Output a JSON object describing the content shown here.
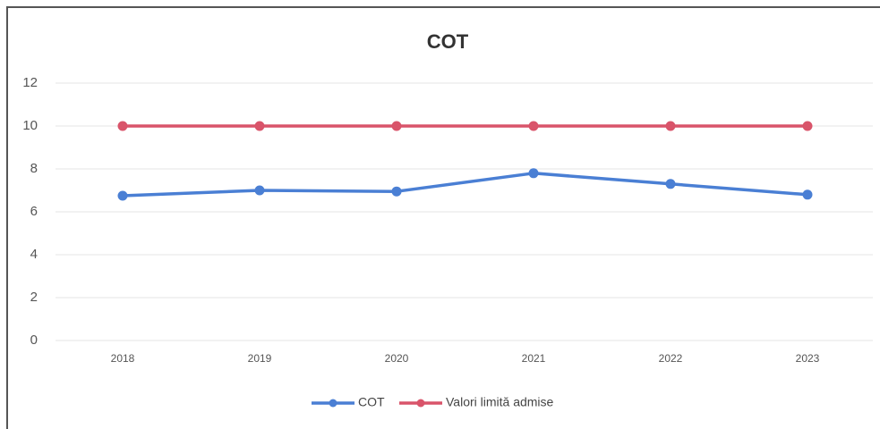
{
  "chart_data": {
    "type": "line",
    "title": "COT",
    "categories": [
      "2018",
      "2019",
      "2020",
      "2021",
      "2022",
      "2023"
    ],
    "series": [
      {
        "name": "COT",
        "color": "#4a7fd4",
        "values": [
          6.75,
          7.0,
          6.95,
          7.8,
          7.3,
          6.8
        ]
      },
      {
        "name": "Valori limită admise",
        "color": "#d9546a",
        "values": [
          10,
          10,
          10,
          10,
          10,
          10
        ]
      }
    ],
    "ylim": [
      0,
      12
    ],
    "yticks": [
      0,
      2,
      4,
      6,
      8,
      10,
      12
    ],
    "grid": true,
    "legend": "bottom"
  }
}
